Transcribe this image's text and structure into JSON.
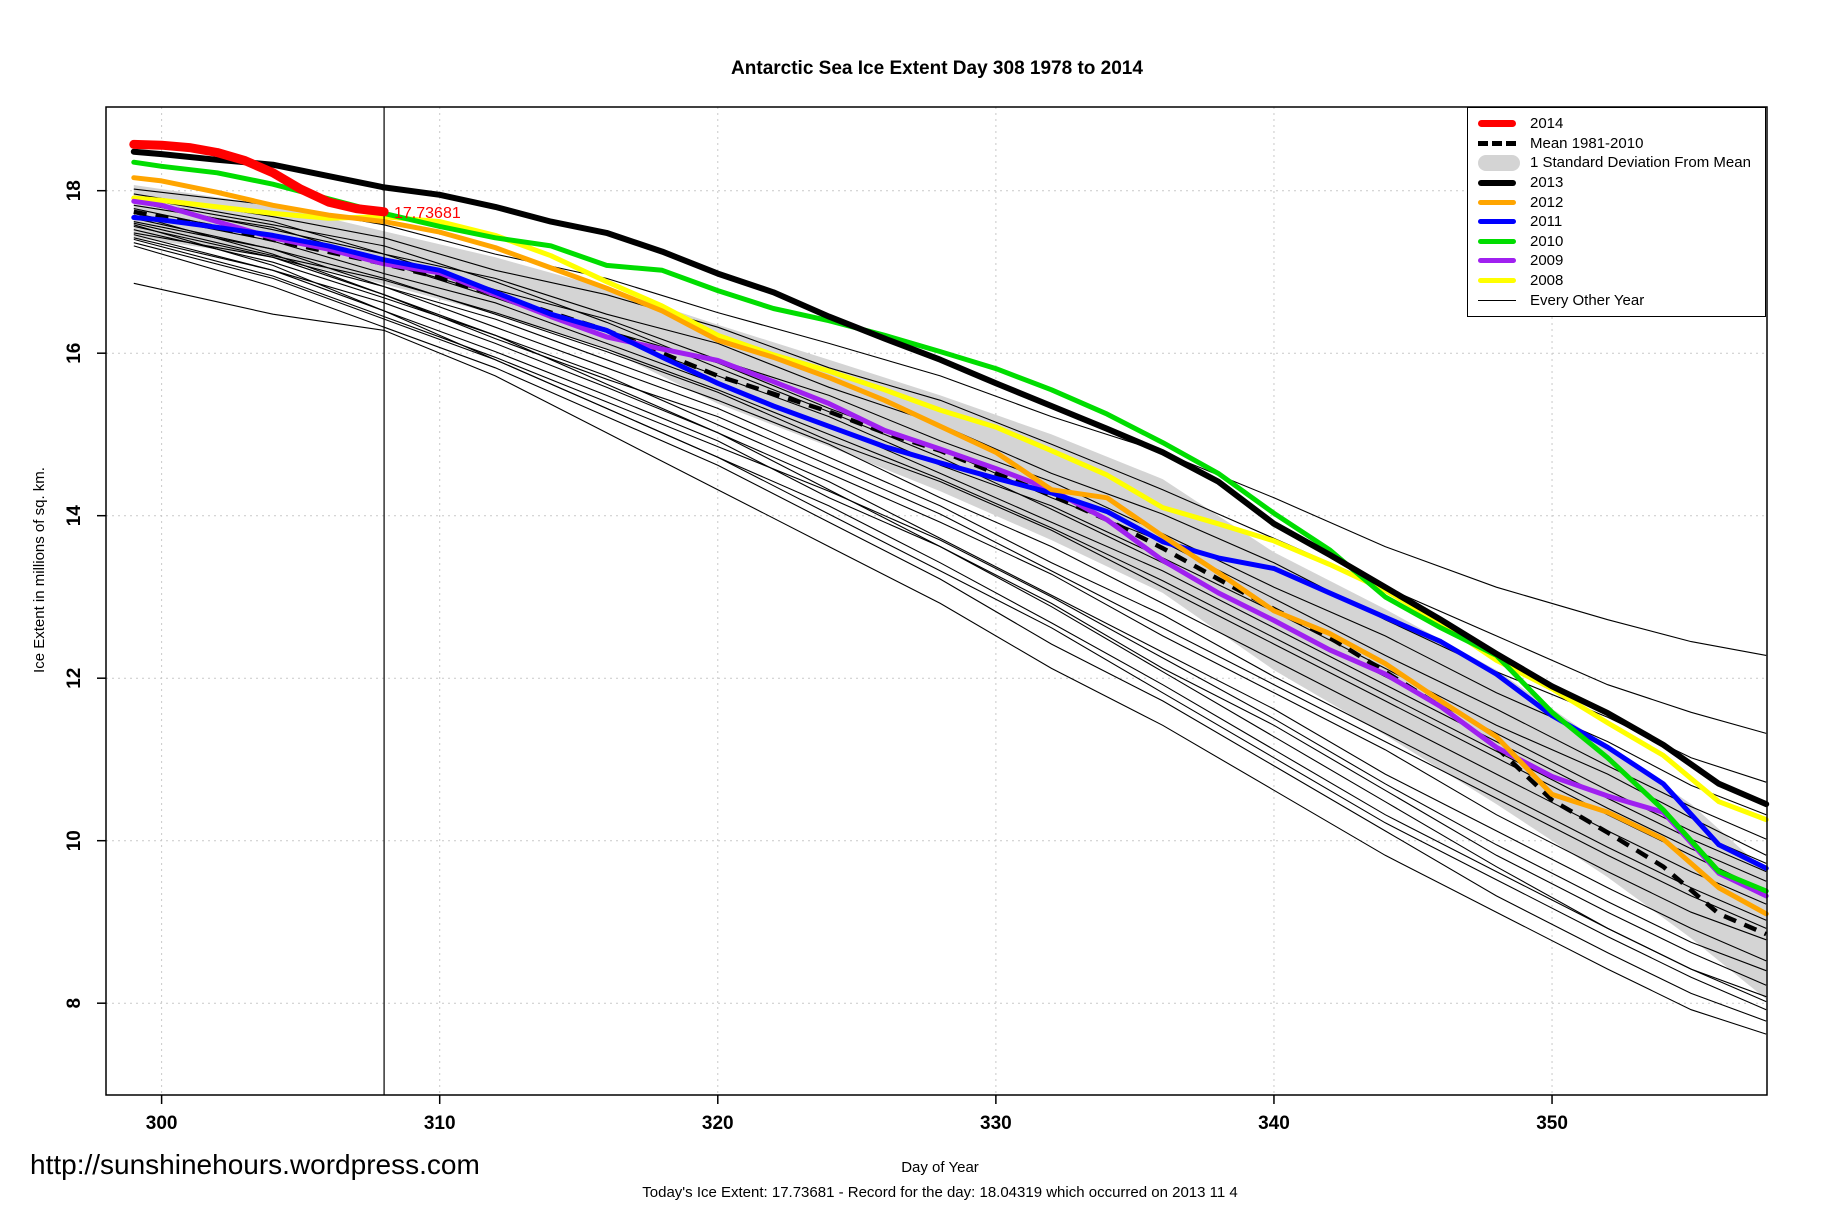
{
  "title": "Antarctic Sea Ice Extent Day 308 1978 to 2014",
  "footer": {
    "site_url": "http://sunshinehours.wordpress.com",
    "stats_line": "Today's Ice Extent: 17.73681  - Record for the day: 18.04319 which occurred on 2013 11 4"
  },
  "annotation": {
    "text": "17.73681",
    "day": 308,
    "value": 17.73681,
    "color": "#ff0000"
  },
  "legend": {
    "position": "top-right",
    "items": [
      {
        "label": "2014",
        "color": "#ff0000",
        "kind": "line",
        "width": 7
      },
      {
        "label": "Mean 1981-2010",
        "color": "#000000",
        "kind": "dashed",
        "width": 5
      },
      {
        "label": "1 Standard Deviation From Mean",
        "color": "#d4d4d4",
        "kind": "band"
      },
      {
        "label": "2013",
        "color": "#000000",
        "kind": "line",
        "width": 6
      },
      {
        "label": "2012",
        "color": "#ffa500",
        "kind": "line",
        "width": 5
      },
      {
        "label": "2011",
        "color": "#0000ff",
        "kind": "line",
        "width": 5
      },
      {
        "label": "2010",
        "color": "#00dd00",
        "kind": "line",
        "width": 5
      },
      {
        "label": "2009",
        "color": "#a020f0",
        "kind": "line",
        "width": 5
      },
      {
        "label": "2008",
        "color": "#ffff00",
        "kind": "line",
        "width": 5
      },
      {
        "label": "Every Other Year",
        "color": "#000000",
        "kind": "thinline",
        "width": 1
      }
    ]
  },
  "chart_data": {
    "type": "line",
    "title": "Antarctic Sea Ice Extent Day 308 1978 to 2014",
    "xlabel": "Day of Year",
    "ylabel": "Ice Extent in millions of sq. km.",
    "xlim": [
      298.0,
      357.73
    ],
    "ylim": [
      6.87,
      19.03
    ],
    "xticks": [
      300,
      310,
      320,
      330,
      340,
      350
    ],
    "yticks": [
      8,
      10,
      12,
      14,
      16,
      18
    ],
    "grid": true,
    "vline_day": 308,
    "band": {
      "name": "1 Standard Deviation From Mean",
      "color": "#d4d4d4",
      "days": [
        299,
        304,
        308,
        312,
        316,
        320,
        324,
        328,
        332,
        336,
        340,
        344,
        348,
        352,
        355,
        357.7
      ],
      "upper": [
        18.07,
        17.82,
        17.5,
        17.18,
        16.8,
        16.35,
        15.92,
        15.48,
        15.0,
        14.45,
        13.55,
        12.85,
        12.1,
        11.15,
        10.45,
        9.62
      ],
      "lower": [
        17.42,
        17.18,
        16.85,
        16.48,
        16.05,
        15.38,
        14.85,
        14.3,
        13.7,
        13.05,
        12.1,
        11.3,
        10.45,
        9.55,
        8.8,
        8.05
      ]
    },
    "mean": {
      "name": "Mean 1981-2010",
      "color": "#000000",
      "days": [
        299,
        302,
        305,
        308,
        310,
        312,
        314,
        316,
        318,
        320,
        322,
        324,
        326,
        328,
        330,
        332,
        334,
        336,
        338,
        340,
        342,
        344,
        346,
        348,
        350,
        352,
        354,
        356,
        357.7
      ],
      "values": [
        17.74,
        17.55,
        17.32,
        17.1,
        16.93,
        16.72,
        16.5,
        16.28,
        16.0,
        15.72,
        15.5,
        15.28,
        15.02,
        14.8,
        14.52,
        14.25,
        13.95,
        13.6,
        13.22,
        12.85,
        12.5,
        12.08,
        11.65,
        11.15,
        10.5,
        10.1,
        9.68,
        9.1,
        8.85
      ]
    },
    "series_days": [
      299,
      300,
      302,
      304,
      306,
      308,
      310,
      312,
      314,
      316,
      318,
      320,
      322,
      324,
      326,
      328,
      330,
      332,
      334,
      336,
      338,
      340,
      342,
      344,
      346,
      348,
      350,
      352,
      354,
      356,
      357.7
    ],
    "series": [
      {
        "name": "2008",
        "color": "#ffff00",
        "width": 5,
        "values": [
          17.91,
          17.88,
          17.8,
          17.72,
          17.66,
          17.68,
          17.62,
          17.45,
          17.2,
          16.88,
          16.58,
          16.22,
          15.98,
          15.78,
          15.55,
          15.3,
          15.09,
          14.8,
          14.5,
          14.1,
          13.9,
          13.69,
          13.4,
          13.08,
          12.68,
          12.22,
          11.87,
          11.45,
          11.05,
          10.48,
          10.26
        ]
      },
      {
        "name": "2009",
        "color": "#a020f0",
        "width": 5,
        "values": [
          17.87,
          17.82,
          17.62,
          17.42,
          17.28,
          17.1,
          16.99,
          16.72,
          16.45,
          16.2,
          16.05,
          15.91,
          15.65,
          15.38,
          15.05,
          14.82,
          14.58,
          14.32,
          13.95,
          13.45,
          13.05,
          12.71,
          12.35,
          12.05,
          11.65,
          11.15,
          10.79,
          10.55,
          10.35,
          9.6,
          9.32
        ]
      },
      {
        "name": "2011",
        "color": "#0000ff",
        "width": 5,
        "values": [
          17.67,
          17.64,
          17.55,
          17.45,
          17.32,
          17.15,
          17.02,
          16.75,
          16.48,
          16.28,
          15.95,
          15.63,
          15.35,
          15.1,
          14.85,
          14.65,
          14.46,
          14.28,
          14.05,
          13.68,
          13.48,
          13.35,
          13.05,
          12.75,
          12.45,
          12.05,
          11.54,
          11.15,
          10.7,
          9.95,
          9.66
        ]
      },
      {
        "name": "2012",
        "color": "#ffa500",
        "width": 5,
        "values": [
          18.16,
          18.12,
          17.98,
          17.82,
          17.7,
          17.62,
          17.49,
          17.3,
          17.05,
          16.8,
          16.52,
          16.16,
          15.95,
          15.7,
          15.42,
          15.1,
          14.78,
          14.32,
          14.22,
          13.75,
          13.3,
          12.83,
          12.55,
          12.18,
          11.72,
          11.28,
          10.57,
          10.35,
          10.02,
          9.42,
          9.1
        ]
      },
      {
        "name": "2010",
        "color": "#00dd00",
        "width": 5,
        "values": [
          18.35,
          18.3,
          18.22,
          18.08,
          17.9,
          17.72,
          17.56,
          17.42,
          17.32,
          17.08,
          17.02,
          16.77,
          16.55,
          16.4,
          16.22,
          16.02,
          15.81,
          15.55,
          15.25,
          14.9,
          14.52,
          14.03,
          13.58,
          13.0,
          12.62,
          12.28,
          11.58,
          11.02,
          10.38,
          9.62,
          9.38
        ]
      },
      {
        "name": "2013",
        "color": "#000000",
        "width": 6,
        "values": [
          18.48,
          18.45,
          18.38,
          18.32,
          18.18,
          18.04,
          17.95,
          17.8,
          17.62,
          17.48,
          17.25,
          16.98,
          16.75,
          16.45,
          16.18,
          15.92,
          15.63,
          15.35,
          15.07,
          14.78,
          14.42,
          13.9,
          13.52,
          13.12,
          12.72,
          12.3,
          11.9,
          11.57,
          11.18,
          10.7,
          10.45
        ]
      }
    ],
    "series_2014": {
      "name": "2014",
      "color": "#ff0000",
      "width": 9,
      "days": [
        299,
        300,
        301,
        302,
        303,
        304,
        305,
        306,
        307,
        308
      ],
      "values": [
        18.57,
        18.56,
        18.53,
        18.47,
        18.37,
        18.22,
        18.02,
        17.86,
        17.78,
        17.74
      ]
    },
    "other_years": {
      "name": "Every Other Year",
      "days": [
        299,
        304,
        308,
        312,
        316,
        320,
        324,
        328,
        332,
        336,
        340,
        344,
        348,
        352,
        355,
        357.7
      ],
      "lines": [
        [
          18.02,
          17.82,
          17.58,
          17.22,
          16.92,
          16.5,
          16.12,
          15.72,
          15.22,
          14.78,
          14.22,
          13.62,
          13.12,
          12.72,
          12.45,
          12.28
        ],
        [
          17.96,
          17.68,
          17.42,
          17.02,
          16.72,
          16.32,
          15.82,
          15.42,
          14.88,
          14.32,
          13.72,
          13.12,
          12.52,
          11.92,
          11.58,
          11.32
        ],
        [
          17.92,
          17.62,
          17.22,
          16.92,
          16.48,
          16.12,
          15.58,
          15.12,
          14.52,
          14.02,
          13.42,
          12.72,
          12.08,
          11.52,
          11.02,
          10.72
        ],
        [
          17.88,
          17.58,
          17.32,
          16.88,
          16.38,
          15.82,
          15.28,
          14.72,
          14.08,
          13.42,
          12.72,
          12.02,
          11.32,
          10.62,
          10.12,
          9.72
        ],
        [
          17.86,
          17.52,
          17.22,
          16.78,
          16.42,
          15.92,
          15.48,
          14.92,
          14.42,
          13.78,
          13.12,
          12.52,
          11.82,
          11.22,
          10.68,
          10.32
        ],
        [
          17.82,
          17.55,
          17.12,
          16.72,
          16.28,
          15.88,
          15.32,
          14.82,
          14.22,
          13.68,
          12.98,
          12.28,
          11.62,
          10.92,
          10.42,
          10.02
        ],
        [
          17.78,
          17.42,
          17.12,
          16.68,
          16.22,
          15.72,
          15.22,
          14.62,
          14.12,
          13.48,
          12.82,
          12.12,
          11.42,
          10.82,
          10.28,
          9.82
        ],
        [
          17.72,
          17.38,
          16.98,
          16.62,
          16.12,
          15.62,
          15.12,
          14.52,
          13.92,
          13.32,
          12.62,
          11.92,
          11.22,
          10.52,
          10.02,
          9.62
        ],
        [
          17.7,
          17.22,
          16.72,
          16.22,
          15.62,
          15.02,
          14.32,
          13.62,
          12.88,
          12.08,
          11.28,
          10.48,
          9.68,
          8.92,
          8.42,
          8.08
        ],
        [
          17.66,
          17.28,
          16.92,
          16.48,
          16.02,
          15.52,
          14.92,
          14.42,
          13.82,
          13.12,
          12.42,
          11.72,
          11.02,
          10.32,
          9.82,
          9.38
        ],
        [
          17.62,
          17.28,
          16.82,
          16.42,
          15.92,
          15.42,
          14.88,
          14.22,
          13.62,
          12.92,
          12.22,
          11.52,
          10.82,
          10.12,
          9.62,
          9.22
        ],
        [
          17.6,
          17.2,
          16.9,
          16.5,
          16.05,
          15.55,
          15.0,
          14.45,
          13.85,
          13.2,
          12.5,
          11.8,
          11.1,
          10.4,
          9.9,
          9.5
        ],
        [
          17.58,
          17.08,
          16.52,
          15.92,
          15.32,
          14.72,
          14.02,
          13.32,
          12.62,
          11.82,
          11.02,
          10.22,
          9.52,
          8.82,
          8.32,
          7.92
        ],
        [
          17.56,
          17.18,
          16.82,
          16.32,
          15.82,
          15.32,
          14.72,
          14.12,
          13.42,
          12.78,
          12.02,
          11.32,
          10.62,
          9.92,
          9.42,
          9.02
        ],
        [
          17.52,
          17.12,
          16.68,
          16.22,
          15.72,
          15.12,
          14.52,
          13.92,
          13.28,
          12.52,
          11.82,
          11.12,
          10.32,
          9.62,
          9.12,
          8.78
        ],
        [
          17.48,
          17.18,
          16.72,
          16.18,
          15.68,
          15.22,
          14.62,
          14.02,
          13.32,
          12.62,
          11.92,
          11.22,
          10.52,
          9.82,
          9.32,
          8.92
        ],
        [
          17.46,
          17.02,
          16.62,
          16.12,
          15.58,
          15.02,
          14.42,
          13.72,
          13.02,
          12.32,
          11.62,
          10.82,
          10.12,
          9.42,
          8.92,
          8.52
        ],
        [
          17.42,
          17.02,
          16.52,
          16.02,
          15.48,
          14.92,
          14.22,
          13.62,
          12.92,
          12.12,
          11.42,
          10.62,
          9.82,
          9.12,
          8.62,
          8.22
        ],
        [
          17.4,
          16.95,
          16.45,
          15.95,
          15.4,
          14.85,
          14.3,
          13.7,
          13.0,
          12.25,
          11.5,
          10.7,
          9.95,
          9.25,
          8.75,
          8.4
        ],
        [
          17.36,
          16.92,
          16.42,
          15.92,
          15.32,
          14.72,
          14.12,
          13.42,
          12.68,
          11.92,
          11.12,
          10.32,
          9.62,
          8.92,
          8.42,
          8.02
        ],
        [
          17.32,
          16.82,
          16.32,
          15.82,
          15.22,
          14.62,
          13.92,
          13.22,
          12.42,
          11.72,
          10.92,
          10.12,
          9.32,
          8.62,
          8.12,
          7.78
        ],
        [
          16.86,
          16.48,
          16.28,
          15.72,
          15.02,
          14.32,
          13.62,
          12.92,
          12.12,
          11.42,
          10.62,
          9.82,
          9.12,
          8.42,
          7.92,
          7.62
        ]
      ]
    }
  }
}
